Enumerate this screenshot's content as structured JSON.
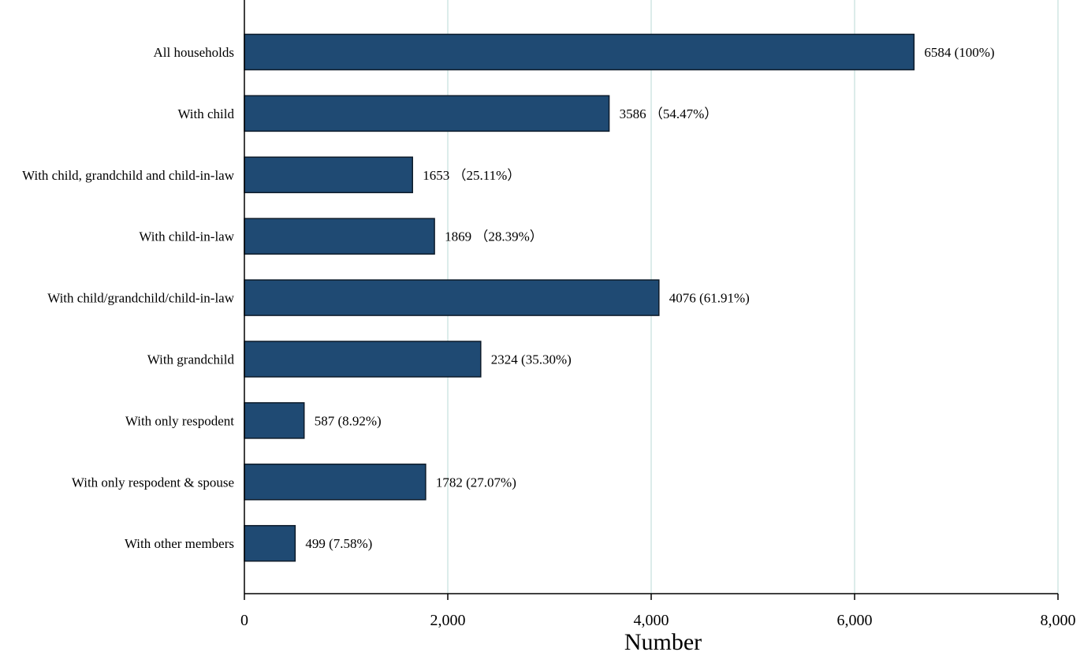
{
  "chart_data": {
    "type": "bar",
    "orientation": "horizontal",
    "categories": [
      "All households",
      "With child",
      "With child, grandchild and child-in-law",
      "With child-in-law",
      "With child/grandchild/child-in-law",
      "With grandchild",
      "With only respodent",
      "With only respodent & spouse",
      "With other members"
    ],
    "values": [
      6584,
      3586,
      1653,
      1869,
      4076,
      2324,
      587,
      1782,
      499
    ],
    "data_labels": [
      "6584 (100%)",
      "3586 （54.47%）",
      "1653 （25.11%）",
      "1869 （28.39%）",
      "4076 (61.91%)",
      "2324 (35.30%)",
      "587 (8.92%)",
      "1782 (27.07%)",
      "499 (7.58%)"
    ],
    "xlabel": "Number",
    "ylabel": "",
    "xlim": [
      0,
      8000
    ],
    "xticks": [
      0,
      2000,
      4000,
      6000,
      8000
    ],
    "xtick_labels": [
      "0",
      "2,000",
      "4,000",
      "6,000",
      "8,000"
    ],
    "grid": "vertical",
    "legend": "none",
    "colors": {
      "bar": "#1f4a73",
      "bar_edge": "#0d1b2a",
      "grid": "#dcecea",
      "axis": "#000000"
    }
  }
}
